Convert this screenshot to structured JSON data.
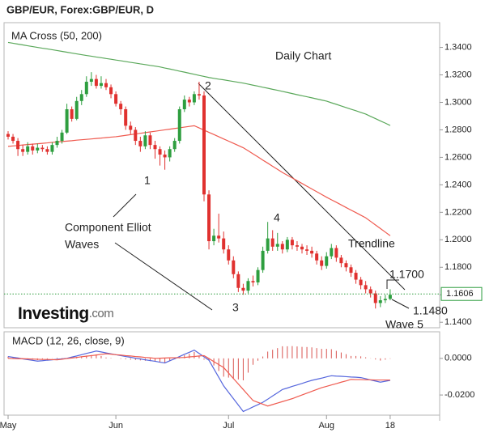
{
  "header": "GBP/EUR, Forex:GBP/EUR, D",
  "chart_data": [
    {
      "type": "candlestick",
      "title": "MA Cross (50, 200)",
      "categories": [
        "May",
        null,
        null,
        null,
        null,
        null,
        null,
        null,
        null,
        null,
        null,
        null,
        null,
        null,
        null,
        null,
        null,
        null,
        null,
        null,
        null,
        null,
        "Jun",
        null,
        null,
        null,
        null,
        null,
        null,
        null,
        null,
        null,
        null,
        null,
        null,
        null,
        null,
        null,
        null,
        null,
        null,
        null,
        null,
        null,
        null,
        "Jul",
        null,
        null,
        null,
        null,
        null,
        null,
        null,
        null,
        null,
        null,
        null,
        null,
        null,
        null,
        null,
        null,
        null,
        null,
        null,
        "Aug",
        null,
        null,
        null,
        null,
        null,
        null,
        null,
        null,
        null,
        null,
        null,
        null,
        "18"
      ],
      "open": [
        1.277,
        1.275,
        1.272,
        1.266,
        1.264,
        1.268,
        1.265,
        1.267,
        1.266,
        1.264,
        1.269,
        1.272,
        1.278,
        1.295,
        1.288,
        1.301,
        1.306,
        1.315,
        1.317,
        1.312,
        1.314,
        1.311,
        1.306,
        1.299,
        1.295,
        1.283,
        1.28,
        1.272,
        1.268,
        1.276,
        1.269,
        1.266,
        1.262,
        1.26,
        1.266,
        1.272,
        1.295,
        1.302,
        1.3,
        1.306,
        1.305,
        1.233,
        1.199,
        1.203,
        1.201,
        1.193,
        1.185,
        1.175,
        1.165,
        1.163,
        1.17,
        1.169,
        1.178,
        1.192,
        1.201,
        1.195,
        1.197,
        1.193,
        1.2,
        1.196,
        1.195,
        1.193,
        1.192,
        1.19,
        1.185,
        1.181,
        1.188,
        1.194,
        1.187,
        1.183,
        1.18,
        1.176,
        1.171,
        1.167,
        1.164,
        1.161,
        1.154,
        1.156,
        1.157
      ],
      "high": [
        1.279,
        1.277,
        1.274,
        1.269,
        1.271,
        1.27,
        1.27,
        1.269,
        1.268,
        1.271,
        1.275,
        1.28,
        1.299,
        1.297,
        1.304,
        1.309,
        1.319,
        1.322,
        1.32,
        1.319,
        1.317,
        1.313,
        1.308,
        1.301,
        1.297,
        1.286,
        1.282,
        1.275,
        1.279,
        1.278,
        1.272,
        1.268,
        1.265,
        1.268,
        1.274,
        1.297,
        1.305,
        1.304,
        1.308,
        1.315,
        1.308,
        1.236,
        1.208,
        1.219,
        1.206,
        1.196,
        1.188,
        1.177,
        1.168,
        1.172,
        1.174,
        1.18,
        1.195,
        1.213,
        1.207,
        1.205,
        1.199,
        1.202,
        1.202,
        1.199,
        1.197,
        1.196,
        1.195,
        1.192,
        1.188,
        1.191,
        1.197,
        1.196,
        1.189,
        1.185,
        1.182,
        1.178,
        1.173,
        1.17,
        1.166,
        1.163,
        1.159,
        1.16,
        1.164
      ],
      "low": [
        1.273,
        1.27,
        1.261,
        1.261,
        1.262,
        1.262,
        1.263,
        1.264,
        1.262,
        1.262,
        1.267,
        1.27,
        1.277,
        1.286,
        1.287,
        1.298,
        1.304,
        1.312,
        1.31,
        1.31,
        1.309,
        1.303,
        1.297,
        1.291,
        1.28,
        1.277,
        1.269,
        1.264,
        1.266,
        1.266,
        1.259,
        1.254,
        1.251,
        1.257,
        1.264,
        1.27,
        1.293,
        1.297,
        1.298,
        1.302,
        1.228,
        1.193,
        1.196,
        1.198,
        1.19,
        1.182,
        1.172,
        1.162,
        1.16,
        1.161,
        1.166,
        1.167,
        1.176,
        1.19,
        1.192,
        1.192,
        1.19,
        1.191,
        1.193,
        1.192,
        1.19,
        1.189,
        1.187,
        1.182,
        1.178,
        1.179,
        1.186,
        1.184,
        1.18,
        1.177,
        1.173,
        1.168,
        1.164,
        1.161,
        1.158,
        1.15,
        1.151,
        1.154,
        1.156
      ],
      "close": [
        1.275,
        1.272,
        1.266,
        1.264,
        1.268,
        1.265,
        1.267,
        1.266,
        1.264,
        1.269,
        1.272,
        1.278,
        1.295,
        1.288,
        1.301,
        1.306,
        1.315,
        1.317,
        1.312,
        1.314,
        1.311,
        1.306,
        1.299,
        1.295,
        1.283,
        1.28,
        1.272,
        1.268,
        1.276,
        1.269,
        1.266,
        1.262,
        1.26,
        1.266,
        1.272,
        1.295,
        1.302,
        1.3,
        1.306,
        1.305,
        1.233,
        1.199,
        1.203,
        1.201,
        1.193,
        1.185,
        1.175,
        1.165,
        1.163,
        1.17,
        1.169,
        1.178,
        1.192,
        1.201,
        1.195,
        1.197,
        1.193,
        1.2,
        1.196,
        1.195,
        1.193,
        1.192,
        1.19,
        1.185,
        1.181,
        1.188,
        1.194,
        1.187,
        1.183,
        1.18,
        1.176,
        1.171,
        1.167,
        1.164,
        1.161,
        1.154,
        1.156,
        1.157,
        1.16
      ],
      "up_color": "#2e9e3f",
      "down_color": "#e0312f",
      "series": [
        {
          "color": "#ef5a4f",
          "values": [
            1.268,
            1.2683,
            1.2686,
            1.269,
            1.2693,
            1.2696,
            1.2699,
            1.2702,
            1.2705,
            1.2709,
            1.2712,
            1.2715,
            1.2718,
            1.2721,
            1.2725,
            1.2728,
            1.2731,
            1.2734,
            1.2737,
            1.274,
            1.2744,
            1.2747,
            1.275,
            1.2755,
            1.276,
            1.2765,
            1.277,
            1.2775,
            1.278,
            1.2785,
            1.279,
            1.2795,
            1.28,
            1.2805,
            1.281,
            1.2815,
            1.282,
            1.2825,
            1.283,
            1.2814,
            1.2798,
            1.2782,
            1.2766,
            1.275,
            1.2734,
            1.2718,
            1.2702,
            1.2686,
            1.267,
            1.2648,
            1.2625,
            1.2603,
            1.258,
            1.2558,
            1.2535,
            1.2513,
            1.249,
            1.247,
            1.245,
            1.243,
            1.241,
            1.239,
            1.237,
            1.235,
            1.233,
            1.231,
            1.2291,
            1.2273,
            1.2254,
            1.2235,
            1.2216,
            1.2198,
            1.2179,
            1.216,
            1.2134,
            1.2108,
            1.2082,
            1.2056,
            1.203
          ]
        },
        {
          "color": "#5aa85a",
          "values": [
            1.3436,
            1.343,
            1.3424,
            1.3418,
            1.3412,
            1.3406,
            1.34,
            1.3394,
            1.3389,
            1.3383,
            1.3377,
            1.3371,
            1.3365,
            1.3359,
            1.3353,
            1.3347,
            1.3341,
            1.3336,
            1.333,
            1.3325,
            1.3319,
            1.3314,
            1.3308,
            1.3303,
            1.3297,
            1.3291,
            1.3286,
            1.328,
            1.3275,
            1.3269,
            1.3264,
            1.3258,
            1.325,
            1.3243,
            1.3235,
            1.3227,
            1.322,
            1.3212,
            1.3204,
            1.3196,
            1.3189,
            1.3181,
            1.3175,
            1.3169,
            1.3164,
            1.3158,
            1.3152,
            1.3146,
            1.314,
            1.3133,
            1.3125,
            1.3118,
            1.311,
            1.3103,
            1.3095,
            1.3088,
            1.308,
            1.3072,
            1.3064,
            1.3056,
            1.3048,
            1.3041,
            1.3033,
            1.3025,
            1.3017,
            1.3009,
            1.2997,
            1.2986,
            1.2974,
            1.2962,
            1.295,
            1.2939,
            1.2927,
            1.2915,
            1.2898,
            1.2882,
            1.2865,
            1.2849,
            1.2832
          ]
        }
      ],
      "ylim": [
        1.136,
        1.358
      ],
      "yticks": [
        {
          "value": 1.34,
          "label": "1.3400"
        },
        {
          "value": 1.32,
          "label": "1.3200"
        },
        {
          "value": 1.3,
          "label": "1.3000"
        },
        {
          "value": 1.28,
          "label": "1.2800"
        },
        {
          "value": 1.26,
          "label": "1.2600"
        },
        {
          "value": 1.24,
          "label": "1.2400"
        },
        {
          "value": 1.22,
          "label": "1.2200"
        },
        {
          "value": 1.2,
          "label": "1.2000"
        },
        {
          "value": 1.18,
          "label": "1.1800"
        },
        {
          "value": 1.16,
          "label": "1.1600"
        },
        {
          "value": 1.14,
          "label": "1.1400"
        }
      ],
      "grid": false,
      "last_price": 1.1606,
      "last_price_color": "#2e9e3f",
      "annotations": [
        "Daily Chart",
        "2",
        "1",
        "4",
        "3",
        "Component Elliot",
        "Waves",
        "Trendline",
        "1.1700",
        "1.1480",
        "Wave 5"
      ],
      "logo": [
        "Investing",
        ".com"
      ]
    },
    {
      "type": "macd",
      "title": "MACD (12, 26, close, 9)",
      "series": [
        {
          "color": "#5566dd",
          "values": [
            0.001,
            0.0006,
            0.0002,
            -0.0003,
            -0.0007,
            -0.0011,
            -0.0015,
            -0.0013,
            -0.001,
            -0.0008,
            -0.0005,
            -0.0003,
            0.0,
            0.0007,
            0.0013,
            0.002,
            0.0027,
            0.0033,
            0.004,
            0.0035,
            0.003,
            0.0025,
            0.002,
            0.0015,
            0.001,
            0.0006,
            0.0001,
            -0.0003,
            -0.0008,
            -0.0012,
            -0.0016,
            -0.0021,
            -0.0025,
            -0.0013,
            -0.0002,
            0.001,
            0.0022,
            0.0033,
            0.0045,
            0.0027,
            0.0008,
            -0.001,
            -0.0057,
            -0.0103,
            -0.015,
            -0.0185,
            -0.022,
            -0.0255,
            -0.029,
            -0.0278,
            -0.0265,
            -0.0253,
            -0.024,
            -0.0223,
            -0.0205,
            -0.0188,
            -0.017,
            -0.0162,
            -0.0153,
            -0.0145,
            -0.0137,
            -0.0128,
            -0.012,
            -0.0114,
            -0.0108,
            -0.0101,
            -0.0095,
            -0.0097,
            -0.0098,
            -0.01,
            -0.0102,
            -0.0103,
            -0.0105,
            -0.0111,
            -0.0118,
            -0.0124,
            -0.013,
            -0.0125,
            -0.012
          ]
        },
        {
          "color": "#ef5a4f",
          "values": [
            0.0,
            -0.0001,
            -0.0002,
            -0.0002,
            -0.0003,
            -0.0004,
            -0.0005,
            -0.0006,
            -0.0006,
            -0.0007,
            -0.0008,
            -0.0005,
            -0.0001,
            0.0002,
            0.0005,
            0.0009,
            0.0012,
            0.0015,
            0.0018,
            0.0022,
            0.0025,
            0.0023,
            0.002,
            0.0018,
            0.0015,
            0.0013,
            0.001,
            0.0008,
            0.0005,
            0.0003,
            0.0,
            0.0001,
            0.0002,
            0.0003,
            0.0003,
            0.0004,
            0.0005,
            0.0008,
            0.001,
            0.0013,
            0.0015,
            -0.0001,
            -0.0018,
            -0.0034,
            -0.005,
            -0.008,
            -0.011,
            -0.014,
            -0.017,
            -0.02,
            -0.023,
            -0.024,
            -0.025,
            -0.026,
            -0.0252,
            -0.0244,
            -0.0236,
            -0.0228,
            -0.022,
            -0.021,
            -0.02,
            -0.019,
            -0.018,
            -0.017,
            -0.016,
            -0.0153,
            -0.0145,
            -0.0138,
            -0.013,
            -0.0123,
            -0.0115,
            -0.0116,
            -0.0116,
            -0.0117,
            -0.0117,
            -0.0118,
            -0.0118,
            -0.0118,
            -0.0118
          ]
        }
      ],
      "histogram": {
        "color": "#d9534f",
        "values": [
          0.001,
          0.0007,
          0.0004,
          -0.0001,
          -0.0004,
          -0.0007,
          -0.001,
          -0.0007,
          -0.0004,
          -0.0001,
          0.0003,
          0.0002,
          0.0001,
          0.0005,
          0.0008,
          0.0011,
          0.0015,
          0.0018,
          0.0022,
          0.0013,
          0.0005,
          0.0002,
          0.0,
          -0.0003,
          -0.0005,
          -0.0007,
          -0.0009,
          -0.0011,
          -0.0013,
          -0.0015,
          -0.0016,
          -0.0022,
          -0.0027,
          -0.0016,
          -0.0005,
          0.0006,
          0.0017,
          0.0025,
          0.0035,
          0.0014,
          -0.0007,
          -0.0009,
          -0.0039,
          -0.0069,
          -0.01,
          -0.0105,
          -0.011,
          -0.0115,
          -0.012,
          -0.0078,
          -0.0035,
          -0.0013,
          0.001,
          0.0037,
          0.0047,
          0.0056,
          0.0066,
          0.0066,
          0.0067,
          0.0065,
          0.0063,
          0.0062,
          0.006,
          0.0056,
          0.0052,
          0.0052,
          0.005,
          0.0041,
          0.0032,
          0.0023,
          0.0013,
          0.0013,
          0.0011,
          0.0006,
          -0.0001,
          -0.0006,
          -0.0012,
          -0.0007,
          -0.0002
        ]
      },
      "ylim": [
        -0.031,
        0.0145
      ],
      "yticks": [
        {
          "value": 0,
          "label": "0.0000"
        },
        {
          "value": -0.02,
          "label": "-0.0200"
        }
      ]
    }
  ]
}
